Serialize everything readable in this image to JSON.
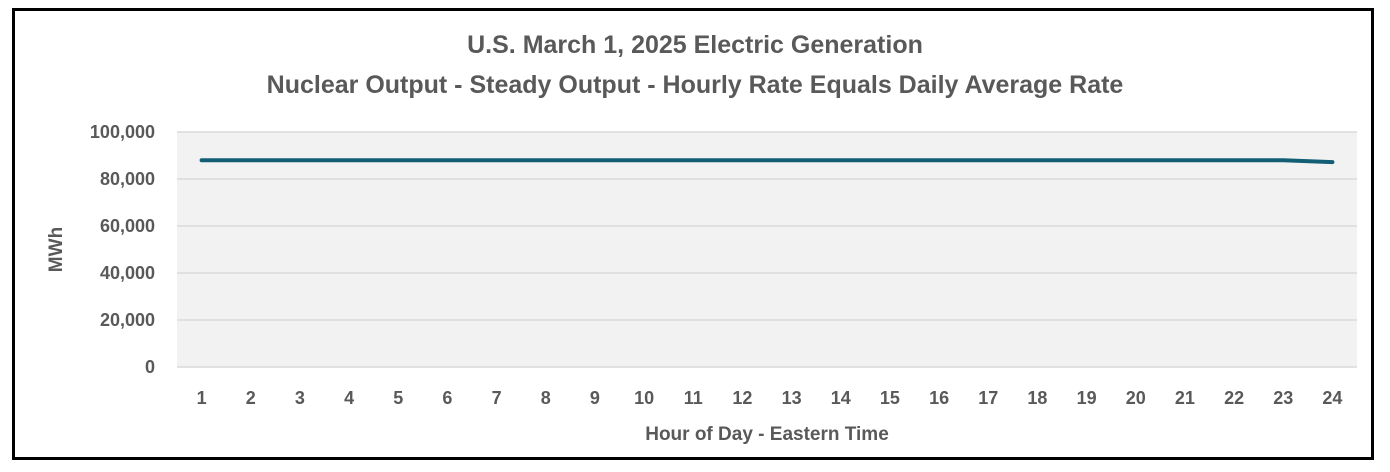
{
  "chart_data": {
    "type": "line",
    "title": "U.S. March 1, 2025  Electric Generation",
    "subtitle": "Nuclear Output - Steady Output - Hourly Rate Equals Daily Average Rate",
    "xlabel": "Hour of Day - Eastern Time",
    "ylabel": "MWh",
    "categories": [
      "1",
      "2",
      "3",
      "4",
      "5",
      "6",
      "7",
      "8",
      "9",
      "10",
      "11",
      "12",
      "13",
      "14",
      "15",
      "16",
      "17",
      "18",
      "19",
      "20",
      "21",
      "22",
      "23",
      "24"
    ],
    "ylim": [
      0,
      100000
    ],
    "yticks": [
      "0",
      "20,000",
      "40,000",
      "60,000",
      "80,000",
      "100,000"
    ],
    "ytick_values": [
      0,
      20000,
      40000,
      60000,
      80000,
      100000
    ],
    "grid": true,
    "series": [
      {
        "values": [
          88000,
          88000,
          88000,
          88000,
          88000,
          88000,
          88000,
          88000,
          88000,
          88000,
          88000,
          88000,
          88000,
          88000,
          88000,
          88000,
          88000,
          88000,
          88000,
          88000,
          88000,
          88000,
          88000,
          87200
        ],
        "color": "#135e75"
      }
    ],
    "plot_bg": "#f2f2f2",
    "gridline_color": "#d9d9d9",
    "text_color": "#595959"
  }
}
